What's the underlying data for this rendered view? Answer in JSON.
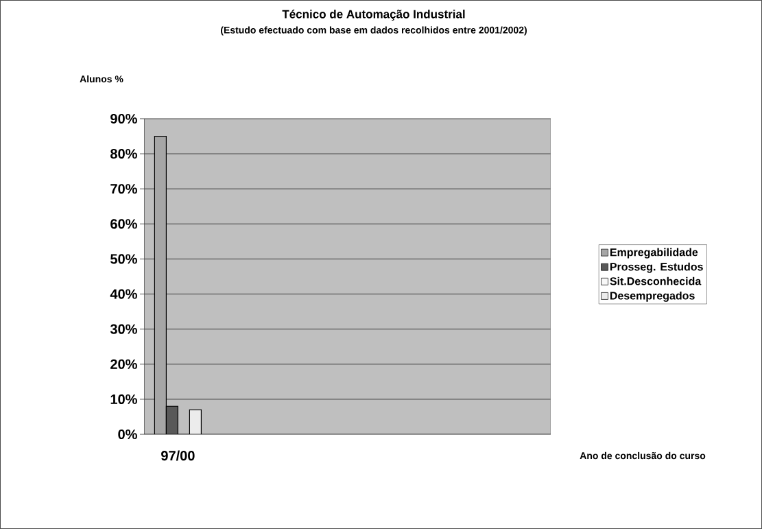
{
  "chart_data": {
    "type": "bar",
    "title": "Técnico de Automação Industrial",
    "subtitle": "(Estudo efectuado com base em dados recolhidos entre 2001/2002)",
    "annotations": [
      "Alunos %"
    ],
    "xlabel": "Ano de conclusão do curso",
    "categories": [
      "97/00",
      null,
      null,
      null,
      null,
      null
    ],
    "series": [
      {
        "name": "Empregabilidade",
        "color": "#a6a6a6",
        "values": [
          85,
          null,
          null,
          null,
          null,
          null
        ]
      },
      {
        "name": "Prosseg. Estudos",
        "color": "#595959",
        "values": [
          8,
          null,
          null,
          null,
          null,
          null
        ]
      },
      {
        "name": "Sit.Desconhecida",
        "color": "#f8f8f8",
        "values": [
          0,
          null,
          null,
          null,
          null,
          null
        ]
      },
      {
        "name": "Desempregados",
        "color": "#ececec",
        "values": [
          7,
          null,
          null,
          null,
          null,
          null
        ]
      }
    ],
    "ylim": [
      0,
      90
    ],
    "yticks": [
      {
        "value": 0,
        "label": "0%"
      },
      {
        "value": 10,
        "label": "10%"
      },
      {
        "value": 20,
        "label": "20%"
      },
      {
        "value": 30,
        "label": "30%"
      },
      {
        "value": 40,
        "label": "40%"
      },
      {
        "value": 50,
        "label": "50%"
      },
      {
        "value": 60,
        "label": "60%"
      },
      {
        "value": 70,
        "label": "70%"
      },
      {
        "value": 80,
        "label": "80%"
      },
      {
        "value": 90,
        "label": "90%"
      }
    ],
    "grid": "y",
    "legend": "right"
  }
}
